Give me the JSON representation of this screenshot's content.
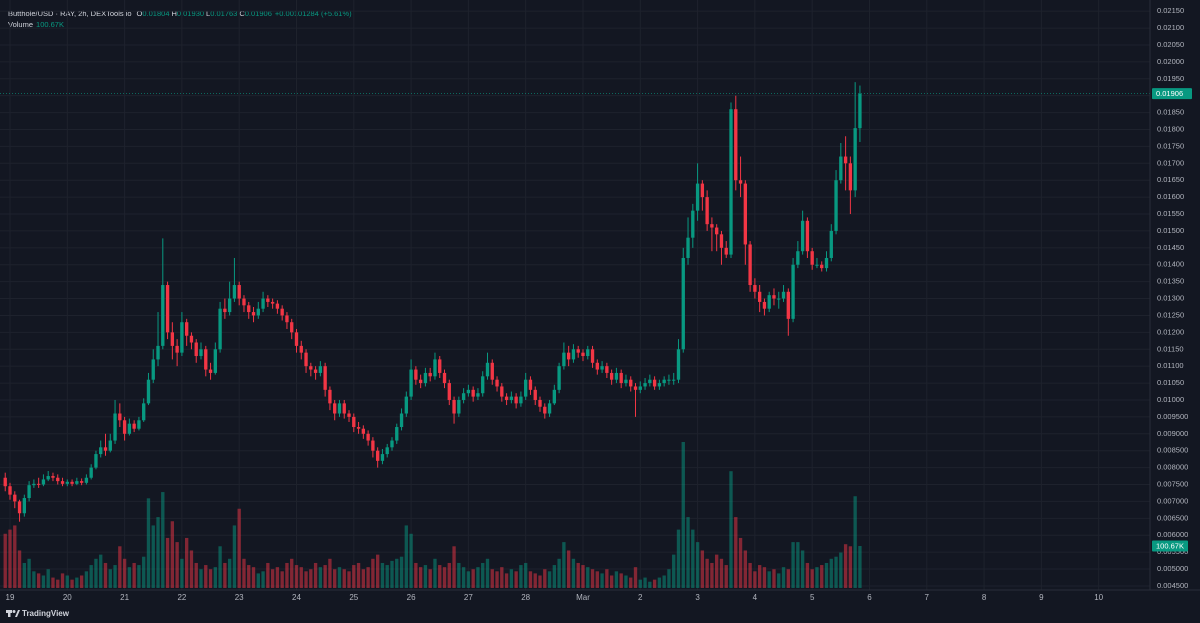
{
  "chart_data": {
    "type": "candlestick",
    "title": "Butthole/USD · RAY, 2h, DEXTools.io",
    "ohlc": [
      {
        "key": "O",
        "text": "0.01804"
      },
      {
        "key": "H",
        "text": "0.01930"
      },
      {
        "key": "L",
        "text": "0.01763"
      },
      {
        "key": "C",
        "text": "0.01906"
      }
    ],
    "change": "+0.00101284 (+5.61%)",
    "volume_title": "Volume",
    "volume_text": "100.67K",
    "last_price_text": "0.01906",
    "volume_tag_text": "100.67K",
    "brand": "TradingView",
    "up_color": "#089981",
    "down_color": "#f23645",
    "grid": true,
    "xlim": [
      -4.19,
      477.5
    ],
    "xticks": [
      {
        "value": 0,
        "label": "19"
      },
      {
        "value": 24,
        "label": "20"
      },
      {
        "value": 48,
        "label": "21"
      },
      {
        "value": 72,
        "label": "22"
      },
      {
        "value": 96,
        "label": "23"
      },
      {
        "value": 120,
        "label": "24"
      },
      {
        "value": 144,
        "label": "25"
      },
      {
        "value": 168,
        "label": "26"
      },
      {
        "value": 192,
        "label": "27"
      },
      {
        "value": 216,
        "label": "28"
      },
      {
        "value": 240,
        "label": "Mar"
      },
      {
        "value": 264,
        "label": "2"
      },
      {
        "value": 288,
        "label": "3"
      },
      {
        "value": 312,
        "label": "4"
      },
      {
        "value": 336,
        "label": "5"
      },
      {
        "value": 360,
        "label": "6"
      },
      {
        "value": 384,
        "label": "7"
      },
      {
        "value": 408,
        "label": "8"
      },
      {
        "value": 432,
        "label": "9"
      },
      {
        "value": 456,
        "label": "10"
      }
    ],
    "ylim": [
      0.00438,
      0.02183
    ],
    "yticks": [
      {
        "value": 0.0045,
        "label": "0.004500"
      },
      {
        "value": 0.005,
        "label": "0.005000"
      },
      {
        "value": 0.0055,
        "label": "0.005500"
      },
      {
        "value": 0.006,
        "label": "0.006000"
      },
      {
        "value": 0.0065,
        "label": "0.006500"
      },
      {
        "value": 0.007,
        "label": "0.007000"
      },
      {
        "value": 0.0075,
        "label": "0.007500"
      },
      {
        "value": 0.008,
        "label": "0.008000"
      },
      {
        "value": 0.0085,
        "label": "0.008500"
      },
      {
        "value": 0.009,
        "label": "0.009000"
      },
      {
        "value": 0.0095,
        "label": "0.009500"
      },
      {
        "value": 0.01,
        "label": "0.01000"
      },
      {
        "value": 0.0105,
        "label": "0.01050"
      },
      {
        "value": 0.011,
        "label": "0.01100"
      },
      {
        "value": 0.0115,
        "label": "0.01150"
      },
      {
        "value": 0.012,
        "label": "0.01200"
      },
      {
        "value": 0.0125,
        "label": "0.01250"
      },
      {
        "value": 0.013,
        "label": "0.01300"
      },
      {
        "value": 0.0135,
        "label": "0.01350"
      },
      {
        "value": 0.014,
        "label": "0.01400"
      },
      {
        "value": 0.0145,
        "label": "0.01450"
      },
      {
        "value": 0.015,
        "label": "0.01500"
      },
      {
        "value": 0.0155,
        "label": "0.01550"
      },
      {
        "value": 0.016,
        "label": "0.01600"
      },
      {
        "value": 0.0165,
        "label": "0.01650"
      },
      {
        "value": 0.017,
        "label": "0.01700"
      },
      {
        "value": 0.0175,
        "label": "0.01750"
      },
      {
        "value": 0.018,
        "label": "0.01800"
      },
      {
        "value": 0.0185,
        "label": "0.01850"
      },
      {
        "value": 0.019,
        "label": "0.01900"
      },
      {
        "value": 0.0195,
        "label": "0.01950"
      },
      {
        "value": 0.02,
        "label": "0.02000"
      },
      {
        "value": 0.0205,
        "label": "0.02050"
      },
      {
        "value": 0.021,
        "label": "0.02100"
      },
      {
        "value": 0.0215,
        "label": "0.02150"
      }
    ],
    "x": [
      -2,
      0,
      2,
      4,
      6,
      8,
      10,
      12,
      14,
      16,
      18,
      20,
      22,
      24,
      26,
      28,
      30,
      32,
      34,
      36,
      38,
      40,
      42,
      44,
      46,
      48,
      50,
      52,
      54,
      56,
      58,
      60,
      62,
      64,
      66,
      68,
      70,
      72,
      74,
      76,
      78,
      80,
      82,
      84,
      86,
      88,
      90,
      92,
      94,
      96,
      98,
      100,
      102,
      104,
      106,
      108,
      110,
      112,
      114,
      116,
      118,
      120,
      122,
      124,
      126,
      128,
      130,
      132,
      134,
      136,
      138,
      140,
      142,
      144,
      146,
      148,
      150,
      152,
      154,
      156,
      158,
      160,
      162,
      164,
      166,
      168,
      170,
      172,
      174,
      176,
      178,
      180,
      182,
      184,
      186,
      188,
      190,
      192,
      194,
      196,
      198,
      200,
      202,
      204,
      206,
      208,
      210,
      212,
      214,
      216,
      218,
      220,
      222,
      224,
      226,
      228,
      230,
      232,
      234,
      236,
      238,
      240,
      242,
      244,
      246,
      248,
      250,
      252,
      254,
      256,
      258,
      260,
      262,
      264,
      266,
      268,
      270,
      272,
      274,
      276,
      278,
      280,
      282,
      284,
      286,
      288,
      290,
      292,
      294,
      296,
      298,
      300,
      302,
      304,
      306,
      308,
      310,
      312,
      314,
      316,
      318,
      320,
      322,
      324,
      326,
      328,
      330,
      332,
      334,
      336,
      338,
      340,
      342,
      344,
      346,
      348,
      350,
      352,
      354,
      356
    ],
    "open": [
      0.0077,
      0.00745,
      0.0072,
      0.007,
      0.00665,
      0.0071,
      0.00748,
      0.00752,
      0.0075,
      0.00765,
      0.00775,
      0.0077,
      0.0076,
      0.00752,
      0.00758,
      0.00752,
      0.0076,
      0.00755,
      0.0077,
      0.008,
      0.0084,
      0.0086,
      0.0085,
      0.0088,
      0.0096,
      0.0094,
      0.009,
      0.0093,
      0.00915,
      0.0094,
      0.0099,
      0.0106,
      0.0112,
      0.0116,
      0.0134,
      0.012,
      0.0116,
      0.0114,
      0.0123,
      0.0119,
      0.0117,
      0.0113,
      0.0115,
      0.0109,
      0.0108,
      0.0115,
      0.0127,
      0.0126,
      0.013,
      0.0134,
      0.013,
      0.0128,
      0.0126,
      0.0125,
      0.0127,
      0.013,
      0.0129,
      0.01285,
      0.0127,
      0.0125,
      0.0123,
      0.012,
      0.0116,
      0.0114,
      0.011,
      0.0109,
      0.0108,
      0.011,
      0.0103,
      0.0099,
      0.0096,
      0.0099,
      0.0096,
      0.0095,
      0.0092,
      0.00915,
      0.009,
      0.0088,
      0.0085,
      0.0082,
      0.0084,
      0.0086,
      0.0088,
      0.0092,
      0.0096,
      0.0101,
      0.0109,
      0.0106,
      0.0105,
      0.0108,
      0.0107,
      0.0112,
      0.0108,
      0.0105,
      0.01,
      0.0096,
      0.01,
      0.0102,
      0.0103,
      0.0101,
      0.0102,
      0.0107,
      0.0111,
      0.0106,
      0.0104,
      0.0101,
      0.01,
      0.0101,
      0.0099,
      0.0101,
      0.0106,
      0.0103,
      0.01,
      0.0098,
      0.0096,
      0.0099,
      0.0103,
      0.011,
      0.0114,
      0.0112,
      0.0115,
      0.0114,
      0.0113,
      0.0115,
      0.0111,
      0.0109,
      0.011,
      0.0108,
      0.0106,
      0.0108,
      0.0105,
      0.0106,
      0.0104,
      0.0103,
      0.0104,
      0.0105,
      0.0106,
      0.0104,
      0.0105,
      0.0106,
      0.0106,
      0.0106,
      0.0115,
      0.0142,
      0.0148,
      0.0156,
      0.0164,
      0.016,
      0.0152,
      0.0151,
      0.0149,
      0.0145,
      0.0143,
      0.0186,
      0.0165,
      0.0164,
      0.0146,
      0.0134,
      0.0132,
      0.0129,
      0.0127,
      0.0131,
      0.013,
      0.013,
      0.0132,
      0.0124,
      0.014,
      0.0144,
      0.0153,
      0.0144,
      0.014,
      0.014,
      0.0139,
      0.0142,
      0.015,
      0.0165,
      0.0172,
      0.017,
      0.0162,
      0.01804
    ],
    "high": [
      0.00785,
      0.00755,
      0.0073,
      0.00705,
      0.0072,
      0.0076,
      0.00765,
      0.0077,
      0.0078,
      0.0079,
      0.00785,
      0.0078,
      0.0077,
      0.00765,
      0.00765,
      0.0077,
      0.00768,
      0.0078,
      0.0081,
      0.0085,
      0.0088,
      0.009,
      0.009,
      0.01,
      0.0099,
      0.0095,
      0.00945,
      0.0094,
      0.0095,
      0.01005,
      0.0108,
      0.0115,
      0.0126,
      0.01478,
      0.0135,
      0.0123,
      0.0118,
      0.0126,
      0.0124,
      0.012,
      0.0118,
      0.0117,
      0.0116,
      0.0111,
      0.0117,
      0.0129,
      0.013,
      0.0135,
      0.0142,
      0.0135,
      0.0131,
      0.0129,
      0.01275,
      0.0129,
      0.0132,
      0.0131,
      0.013,
      0.01295,
      0.0128,
      0.0126,
      0.0124,
      0.0121,
      0.01175,
      0.0115,
      0.0111,
      0.011,
      0.01115,
      0.0111,
      0.0104,
      0.01,
      0.01,
      0.01,
      0.0097,
      0.0096,
      0.00935,
      0.00925,
      0.0091,
      0.0089,
      0.0086,
      0.00855,
      0.0087,
      0.0089,
      0.0093,
      0.00975,
      0.01025,
      0.0112,
      0.011,
      0.01075,
      0.01095,
      0.01095,
      0.0114,
      0.0113,
      0.0109,
      0.0106,
      0.0101,
      0.0101,
      0.01035,
      0.01045,
      0.0104,
      0.01035,
      0.01085,
      0.0114,
      0.0112,
      0.0107,
      0.0105,
      0.0102,
      0.01025,
      0.0102,
      0.01025,
      0.0108,
      0.0107,
      0.0104,
      0.0101,
      0.0099,
      0.01,
      0.01045,
      0.0111,
      0.0117,
      0.0116,
      0.01165,
      0.0116,
      0.0115,
      0.0116,
      0.0116,
      0.0112,
      0.01115,
      0.0111,
      0.0109,
      0.01095,
      0.0109,
      0.01075,
      0.0107,
      0.0105,
      0.01055,
      0.01065,
      0.01075,
      0.0107,
      0.0106,
      0.0107,
      0.01075,
      0.0108,
      0.0118,
      0.0145,
      0.0154,
      0.0158,
      0.017,
      0.0165,
      0.0162,
      0.0154,
      0.0152,
      0.015,
      0.0147,
      0.0188,
      0.019,
      0.0172,
      0.0165,
      0.0147,
      0.0136,
      0.0134,
      0.013,
      0.0132,
      0.0133,
      0.0132,
      0.0134,
      0.0133,
      0.0142,
      0.0147,
      0.0156,
      0.0154,
      0.0145,
      0.0142,
      0.0141,
      0.0144,
      0.0152,
      0.0168,
      0.0176,
      0.0178,
      0.0172,
      0.0194,
      0.0193
    ],
    "low": [
      0.0073,
      0.00705,
      0.0068,
      0.0064,
      0.00655,
      0.007,
      0.0074,
      0.0074,
      0.00745,
      0.0076,
      0.0076,
      0.0075,
      0.00745,
      0.00745,
      0.00745,
      0.00748,
      0.00748,
      0.0075,
      0.00765,
      0.00795,
      0.0083,
      0.00835,
      0.00845,
      0.0087,
      0.0092,
      0.0088,
      0.00895,
      0.00905,
      0.0091,
      0.00935,
      0.00985,
      0.0105,
      0.011,
      0.0115,
      0.0118,
      0.0112,
      0.011,
      0.0113,
      0.0116,
      0.0115,
      0.0111,
      0.0112,
      0.0107,
      0.0106,
      0.01075,
      0.0114,
      0.0124,
      0.0125,
      0.0129,
      0.0128,
      0.0126,
      0.0124,
      0.0123,
      0.0124,
      0.0126,
      0.01275,
      0.0127,
      0.01255,
      0.01235,
      0.0121,
      0.0118,
      0.0114,
      0.0112,
      0.0108,
      0.0107,
      0.0106,
      0.0107,
      0.0101,
      0.0097,
      0.0094,
      0.0095,
      0.00945,
      0.00935,
      0.00905,
      0.009,
      0.00885,
      0.00865,
      0.0083,
      0.008,
      0.0081,
      0.0083,
      0.0085,
      0.0087,
      0.0091,
      0.0095,
      0.01,
      0.01045,
      0.01035,
      0.0104,
      0.01055,
      0.0106,
      0.01065,
      0.01035,
      0.00985,
      0.0093,
      0.0095,
      0.0099,
      0.0101,
      0.00995,
      0.01,
      0.0101,
      0.0106,
      0.01045,
      0.01025,
      0.00995,
      0.00985,
      0.0099,
      0.00975,
      0.0098,
      0.01,
      0.01015,
      0.00985,
      0.00965,
      0.00945,
      0.0095,
      0.00985,
      0.0102,
      0.0109,
      0.011,
      0.0111,
      0.01125,
      0.01115,
      0.0112,
      0.01095,
      0.01075,
      0.0108,
      0.01065,
      0.01045,
      0.0105,
      0.01035,
      0.0104,
      0.01025,
      0.0095,
      0.0102,
      0.0103,
      0.0104,
      0.0103,
      0.0103,
      0.0104,
      0.01045,
      0.01045,
      0.0105,
      0.0114,
      0.014,
      0.0145,
      0.0153,
      0.0156,
      0.015,
      0.0144,
      0.0144,
      0.014,
      0.0142,
      0.0142,
      0.0162,
      0.016,
      0.014,
      0.0132,
      0.013,
      0.0126,
      0.0125,
      0.0126,
      0.0128,
      0.0127,
      0.0129,
      0.0119,
      0.0123,
      0.0139,
      0.0143,
      0.0142,
      0.01385,
      0.0139,
      0.0138,
      0.0138,
      0.0141,
      0.0149,
      0.0164,
      0.0162,
      0.0155,
      0.016,
      0.01763
    ],
    "close": [
      0.00745,
      0.0072,
      0.007,
      0.00665,
      0.0071,
      0.00748,
      0.00752,
      0.0075,
      0.00765,
      0.00775,
      0.0077,
      0.0076,
      0.00752,
      0.00758,
      0.00752,
      0.0076,
      0.00755,
      0.0077,
      0.008,
      0.0084,
      0.0086,
      0.0085,
      0.0088,
      0.0096,
      0.0094,
      0.009,
      0.0093,
      0.00915,
      0.0094,
      0.0099,
      0.0106,
      0.0112,
      0.0116,
      0.0134,
      0.012,
      0.0116,
      0.0114,
      0.0123,
      0.0119,
      0.0117,
      0.0113,
      0.0115,
      0.0109,
      0.0108,
      0.0115,
      0.0127,
      0.0126,
      0.013,
      0.0134,
      0.013,
      0.0128,
      0.0126,
      0.0125,
      0.0127,
      0.013,
      0.0129,
      0.01285,
      0.0127,
      0.0125,
      0.0123,
      0.012,
      0.0116,
      0.0114,
      0.011,
      0.0109,
      0.0108,
      0.011,
      0.0103,
      0.0099,
      0.0096,
      0.0099,
      0.0096,
      0.0095,
      0.0092,
      0.00915,
      0.009,
      0.0088,
      0.0085,
      0.0082,
      0.0084,
      0.0086,
      0.0088,
      0.0092,
      0.0096,
      0.0101,
      0.0109,
      0.0106,
      0.0105,
      0.0108,
      0.0107,
      0.0112,
      0.0108,
      0.0105,
      0.01,
      0.0096,
      0.01,
      0.0102,
      0.0103,
      0.0101,
      0.0102,
      0.0107,
      0.0111,
      0.0106,
      0.0104,
      0.0101,
      0.01,
      0.0101,
      0.0099,
      0.0101,
      0.0106,
      0.0103,
      0.01,
      0.0098,
      0.0096,
      0.0099,
      0.0103,
      0.011,
      0.0114,
      0.0112,
      0.0115,
      0.0114,
      0.0113,
      0.0115,
      0.0111,
      0.0109,
      0.011,
      0.0108,
      0.0106,
      0.0108,
      0.0105,
      0.0106,
      0.0104,
      0.0103,
      0.0104,
      0.0105,
      0.0106,
      0.0104,
      0.0105,
      0.0106,
      0.0106,
      0.0106,
      0.0115,
      0.0142,
      0.0148,
      0.0156,
      0.0164,
      0.016,
      0.0152,
      0.0151,
      0.0149,
      0.0145,
      0.0143,
      0.0186,
      0.0165,
      0.0164,
      0.0146,
      0.0134,
      0.0132,
      0.0129,
      0.0127,
      0.0131,
      0.013,
      0.013,
      0.0132,
      0.0124,
      0.014,
      0.0144,
      0.0153,
      0.0144,
      0.014,
      0.014,
      0.0139,
      0.0142,
      0.015,
      0.0165,
      0.0172,
      0.017,
      0.0162,
      0.01804,
      0.01906
    ],
    "volume": [
      130000,
      140000,
      150000,
      90000,
      60000,
      70000,
      40000,
      35000,
      30000,
      45000,
      25000,
      20000,
      35000,
      30000,
      20000,
      25000,
      30000,
      40000,
      55000,
      70000,
      80000,
      60000,
      45000,
      55000,
      100000,
      70000,
      50000,
      60000,
      55000,
      75000,
      215000,
      150000,
      170000,
      230000,
      120000,
      160000,
      110000,
      70000,
      120000,
      90000,
      60000,
      45000,
      55000,
      45000,
      50000,
      100000,
      60000,
      70000,
      150000,
      190000,
      70000,
      55000,
      50000,
      35000,
      40000,
      60000,
      45000,
      50000,
      40000,
      60000,
      70000,
      55000,
      50000,
      40000,
      45000,
      60000,
      50000,
      55000,
      70000,
      45000,
      50000,
      45000,
      40000,
      55000,
      60000,
      45000,
      50000,
      70000,
      80000,
      60000,
      55000,
      65000,
      70000,
      75000,
      150000,
      130000,
      60000,
      50000,
      55000,
      45000,
      70000,
      55000,
      50000,
      60000,
      100000,
      60000,
      50000,
      40000,
      45000,
      50000,
      60000,
      70000,
      45000,
      40000,
      50000,
      35000,
      45000,
      40000,
      55000,
      60000,
      40000,
      35000,
      30000,
      45000,
      40000,
      55000,
      70000,
      110000,
      90000,
      70000,
      60000,
      55000,
      50000,
      45000,
      40000,
      35000,
      45000,
      30000,
      40000,
      35000,
      30000,
      25000,
      50000,
      20000,
      25000,
      15000,
      20000,
      25000,
      30000,
      45000,
      80000,
      140000,
      350000,
      170000,
      140000,
      110000,
      90000,
      70000,
      60000,
      80000,
      70000,
      55000,
      280000,
      170000,
      120000,
      90000,
      60000,
      40000,
      55000,
      50000,
      40000,
      45000,
      35000,
      50000,
      45000,
      110000,
      110000,
      90000,
      60000,
      45000,
      50000,
      55000,
      60000,
      70000,
      75000,
      85000,
      105000,
      100000,
      220000,
      100670
    ]
  }
}
